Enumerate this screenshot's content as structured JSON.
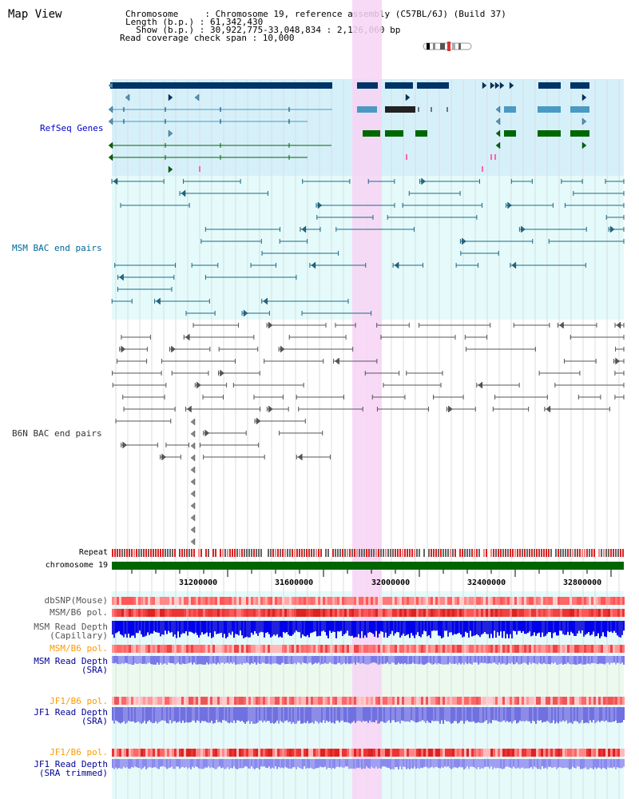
{
  "title": "Map View",
  "info": {
    "line1": "Chromosome     : Chromosome 19, reference assembly (C57BL/6J) (Build 37)",
    "line2": "Length (b.p.) : 61,342,430",
    "line3": "  Show (b.p.) : 30,922,775-33,048,834 : 2,126,060 bp",
    "line4": "Read coverage check span : 10,000"
  },
  "tracks": {
    "refseq": {
      "label": "RefSeq Genes",
      "color": "#0000cc"
    },
    "msm_bac": {
      "label": "MSM BAC end pairs",
      "color": "#006699"
    },
    "b6n_bac": {
      "label": "B6N BAC end pairs",
      "color": "#333333"
    }
  },
  "rows": {
    "repeat": "Repeat",
    "chromosome": "chromosome 19",
    "dbsnp": "dbSNP(Mouse)",
    "msm_pol1": "MSM/B6 pol.",
    "msm_depth_cap": "MSM Read Depth\n(Capillary)",
    "msm_pol2": "MSM/B6 pol.",
    "msm_depth_sra": "MSM Read Depth\n(SRA)",
    "jf1_pol1": "JF1/B6 pol.",
    "jf1_depth_sra": "JF1 Read Depth\n(SRA)",
    "jf1_pol2": "JF1/B6 pol.",
    "jf1_depth_trim": "JF1 Read Depth\n(SRA trimmed)"
  },
  "axis": {
    "ticks": [
      "31200000",
      "31600000",
      "32000000",
      "32400000",
      "32800000"
    ]
  },
  "colors": {
    "refseq_bg": "#d6f0fa",
    "msm_bg": "#e5fafa",
    "highlight": "#f8d4f4",
    "gene_dark": "#003366",
    "gene_mid": "#4a9ac4",
    "gene_green": "#006600",
    "chrom_green": "#006600",
    "depth_blue": "#0000ee",
    "depth_light": "#8888ee",
    "pol_red": "#ee5555",
    "gray_label": "#555555",
    "orange_label": "#ff9900",
    "navy_label": "#000099"
  }
}
